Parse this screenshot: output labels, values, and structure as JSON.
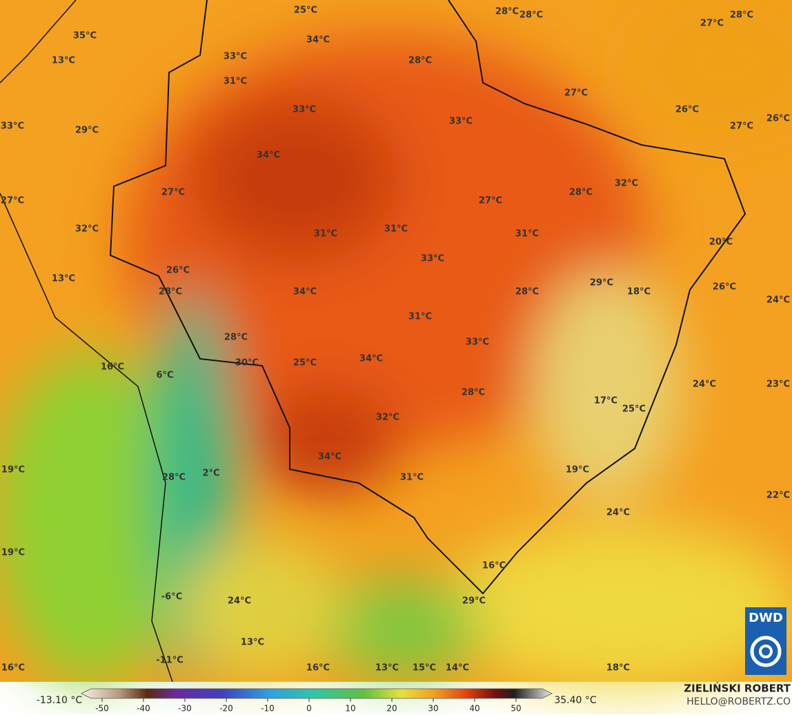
{
  "map": {
    "labels": [
      "25°C",
      "28°C",
      "28°C",
      "27°C",
      "28°C",
      "35°C",
      "34°C",
      "33°C",
      "13°C",
      "28°C",
      "31°C",
      "27°C",
      "33°C",
      "26°C",
      "26°C",
      "33°C",
      "27°C",
      "33°C",
      "29°C",
      "34°C",
      "32°C",
      "27°C",
      "28°C",
      "27°C",
      "27°C",
      "32°C",
      "31°C",
      "31°C",
      "31°C",
      "20°C",
      "33°C",
      "26°C",
      "13°C",
      "29°C",
      "26°C",
      "28°C",
      "34°C",
      "28°C",
      "18°C",
      "24°C",
      "31°C",
      "28°C",
      "33°C",
      "34°C",
      "30°C",
      "25°C",
      "16°C",
      "6°C",
      "24°C",
      "23°C",
      "28°C",
      "17°C",
      "25°C",
      "32°C",
      "34°C",
      "19°C",
      "2°C",
      "28°C",
      "19°C",
      "31°C",
      "22°C",
      "24°C",
      "19°C",
      "16°C",
      "-6°C",
      "24°C",
      "29°C",
      "13°C",
      "-11°C",
      "16°C",
      "16°C",
      "13°C",
      "15°C",
      "14°C",
      "18°C"
    ]
  },
  "colorbar": {
    "min_label": "-13.10 °C",
    "max_label": "35.40 °C",
    "ticks": [
      -50,
      -40,
      -30,
      -20,
      -10,
      0,
      10,
      20,
      30,
      40,
      50
    ]
  },
  "credits": {
    "author": "ZIELIŃSKI ROBERT",
    "email": "HELLO@ROBERTZ.CO",
    "logo": "DWD"
  }
}
